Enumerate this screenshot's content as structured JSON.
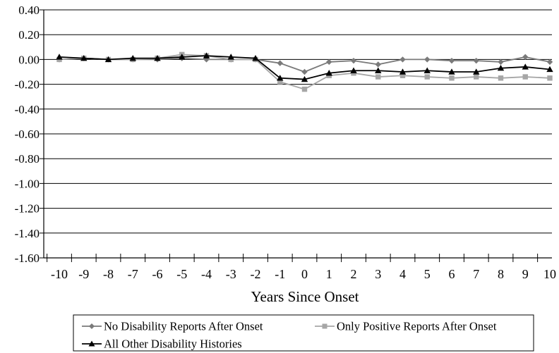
{
  "chart_data": {
    "type": "line",
    "title": "",
    "xlabel": "Years Since Onset",
    "ylabel": "",
    "x": [
      -10,
      -9,
      -8,
      -7,
      -6,
      -5,
      -4,
      -3,
      -2,
      -1,
      0,
      1,
      2,
      3,
      4,
      5,
      6,
      7,
      8,
      9,
      10
    ],
    "xlim": [
      -10,
      10
    ],
    "ylim": [
      -1.6,
      0.4
    ],
    "yticks": [
      "0.40",
      "0.20",
      "0.00",
      "-0.20",
      "-0.40",
      "-0.60",
      "-0.80",
      "-1.00",
      "-1.20",
      "-1.40",
      "-1.60"
    ],
    "ytick_values": [
      0.4,
      0.2,
      0.0,
      -0.2,
      -0.4,
      -0.6,
      -0.8,
      -1.0,
      -1.2,
      -1.4,
      -1.6
    ],
    "xticks": [
      "-10",
      "-9",
      "-8",
      "-7",
      "-6",
      "-5",
      "-4",
      "-3",
      "-2",
      "-1",
      "0",
      "1",
      "2",
      "3",
      "4",
      "5",
      "6",
      "7",
      "8",
      "9",
      "10"
    ],
    "grid": "horizontal",
    "legend_position": "bottom",
    "series": [
      {
        "name": "No Disability Reports After Onset",
        "color": "#7a7a7a",
        "marker": "diamond",
        "values": [
          0.0,
          0.01,
          0.0,
          0.0,
          0.0,
          0.01,
          0.0,
          0.0,
          0.0,
          -0.03,
          -0.1,
          -0.02,
          -0.01,
          -0.04,
          0.0,
          0.0,
          -0.01,
          -0.01,
          -0.02,
          0.02,
          -0.02
        ]
      },
      {
        "name": "Only Positive Reports After Onset",
        "color": "#a6a6a6",
        "marker": "square",
        "values": [
          0.0,
          0.01,
          0.0,
          0.0,
          0.01,
          0.04,
          0.03,
          0.0,
          0.0,
          -0.18,
          -0.24,
          -0.13,
          -0.11,
          -0.14,
          -0.13,
          -0.14,
          -0.15,
          -0.14,
          -0.15,
          -0.14,
          -0.15
        ]
      },
      {
        "name": "All Other Disability Histories",
        "color": "#000000",
        "marker": "triangle",
        "values": [
          0.02,
          0.01,
          0.0,
          0.01,
          0.01,
          0.02,
          0.03,
          0.02,
          0.01,
          -0.15,
          -0.16,
          -0.11,
          -0.09,
          -0.09,
          -0.1,
          -0.09,
          -0.1,
          -0.1,
          -0.07,
          -0.06,
          -0.08
        ]
      }
    ]
  }
}
